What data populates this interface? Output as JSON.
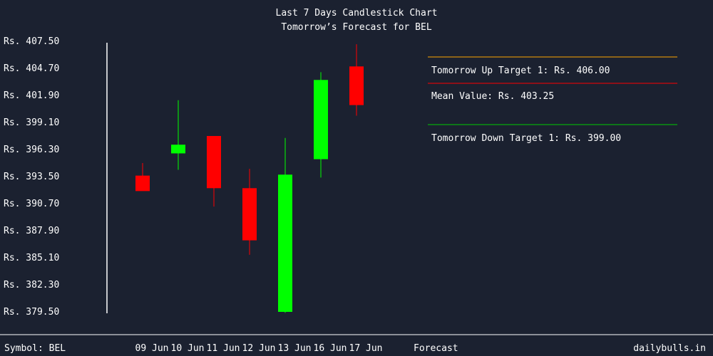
{
  "colors": {
    "background": "#1b2130",
    "text": "#ffffff",
    "up_candle": "#00ff00",
    "down_candle": "#ff0000",
    "axis": "#ffffff",
    "up_target_line": "#ffa500",
    "mean_line": "#ff0000",
    "down_target_line": "#00cc00"
  },
  "footer": {
    "symbol": "Symbol: BEL",
    "forecast_label": "Forecast",
    "site": "dailybulls.in"
  },
  "forecast_box": {
    "up_target": "Tomorrow Up Target 1: Rs. 406.00",
    "mean": "Mean Value: Rs. 403.25",
    "down_target": "Tomorrow Down Target 1: Rs. 399.00"
  },
  "chart_data": {
    "type": "candlestick",
    "title": "Last 7 Days Candlestick Chart",
    "subtitle": "Tomorrow’s Forecast for BEL",
    "ylim": [
      379.5,
      407.5
    ],
    "y_ticks": [
      407.5,
      404.7,
      401.9,
      399.1,
      396.3,
      393.5,
      390.7,
      387.9,
      385.1,
      382.3,
      379.5
    ],
    "y_tick_labels": [
      "Rs. 407.50",
      "Rs. 404.70",
      "Rs. 401.90",
      "Rs. 399.10",
      "Rs. 396.30",
      "Rs. 393.50",
      "Rs. 390.70",
      "Rs. 387.90",
      "Rs. 385.10",
      "Rs. 382.30",
      "Rs. 379.50"
    ],
    "categories": [
      "09 Jun",
      "10 Jun",
      "11 Jun",
      "12 Jun",
      "13 Jun",
      "16 Jun",
      "17 Jun"
    ],
    "candles": [
      {
        "date": "09 Jun",
        "open": 393.6,
        "high": 394.9,
        "low": 392.1,
        "close": 392.0
      },
      {
        "date": "10 Jun",
        "open": 395.9,
        "high": 401.4,
        "low": 394.2,
        "close": 396.8
      },
      {
        "date": "11 Jun",
        "open": 397.7,
        "high": 397.7,
        "low": 390.4,
        "close": 392.3
      },
      {
        "date": "12 Jun",
        "open": 392.3,
        "high": 394.3,
        "low": 385.4,
        "close": 386.9
      },
      {
        "date": "13 Jun",
        "open": 379.5,
        "high": 397.5,
        "low": 379.4,
        "close": 393.7
      },
      {
        "date": "16 Jun",
        "open": 395.3,
        "high": 404.3,
        "low": 393.4,
        "close": 403.5
      },
      {
        "date": "17 Jun",
        "open": 404.9,
        "high": 407.2,
        "low": 399.8,
        "close": 400.9
      }
    ],
    "forecast": {
      "up_target": 406.0,
      "mean": 403.25,
      "down_target": 399.0
    }
  }
}
